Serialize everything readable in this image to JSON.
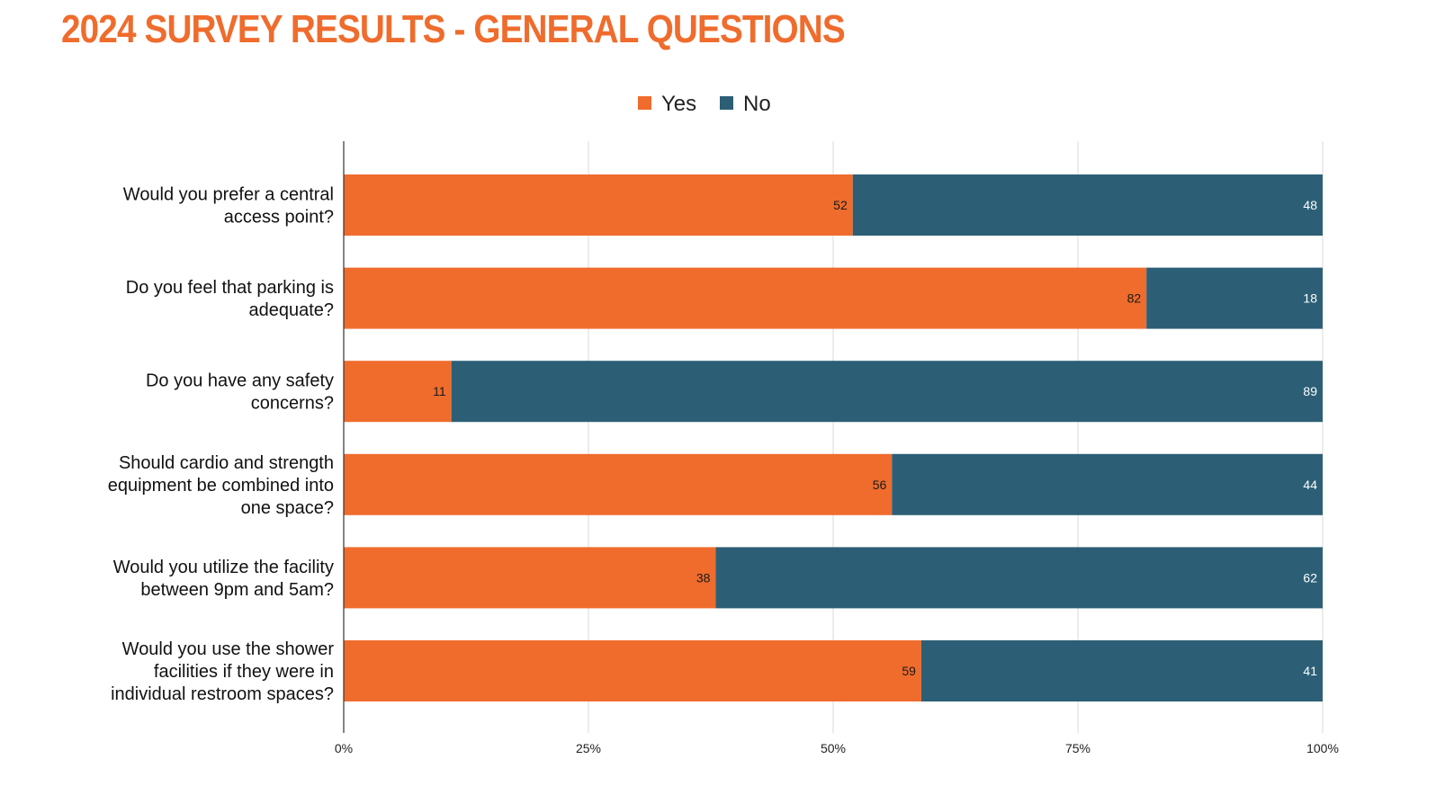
{
  "title": "2024 SURVEY RESULTS - GENERAL QUESTIONS",
  "colors": {
    "yes": "#ef6c2d",
    "no": "#2c5f76",
    "title": "#ef6c2d",
    "grid": "#d9d9d9"
  },
  "chart_data": {
    "type": "bar",
    "orientation": "horizontal",
    "stacked": true,
    "normalized": true,
    "title": "",
    "xlabel": "",
    "ylabel": "",
    "xlim": [
      0,
      100
    ],
    "ticks": [
      "0%",
      "25%",
      "50%",
      "75%",
      "100%"
    ],
    "tick_values": [
      0,
      25,
      50,
      75,
      100
    ],
    "grid": true,
    "legend_position": "top-center",
    "categories": [
      [
        "Would you prefer a central",
        "access point?"
      ],
      [
        "Do you feel that parking is",
        "adequate?"
      ],
      [
        "Do you have any safety",
        "concerns?"
      ],
      [
        "Should cardio and strength",
        "equipment be combined into",
        "one space?"
      ],
      [
        "Would you utilize the facility",
        "between 9pm and 5am?"
      ],
      [
        "Would you use the shower",
        "facilities if they were in",
        "individual restroom spaces?"
      ]
    ],
    "series": [
      {
        "name": "Yes",
        "color": "#ef6c2d",
        "values": [
          52,
          82,
          11,
          56,
          38,
          59
        ]
      },
      {
        "name": "No",
        "color": "#2c5f76",
        "values": [
          48,
          18,
          89,
          44,
          62,
          41
        ]
      }
    ]
  }
}
